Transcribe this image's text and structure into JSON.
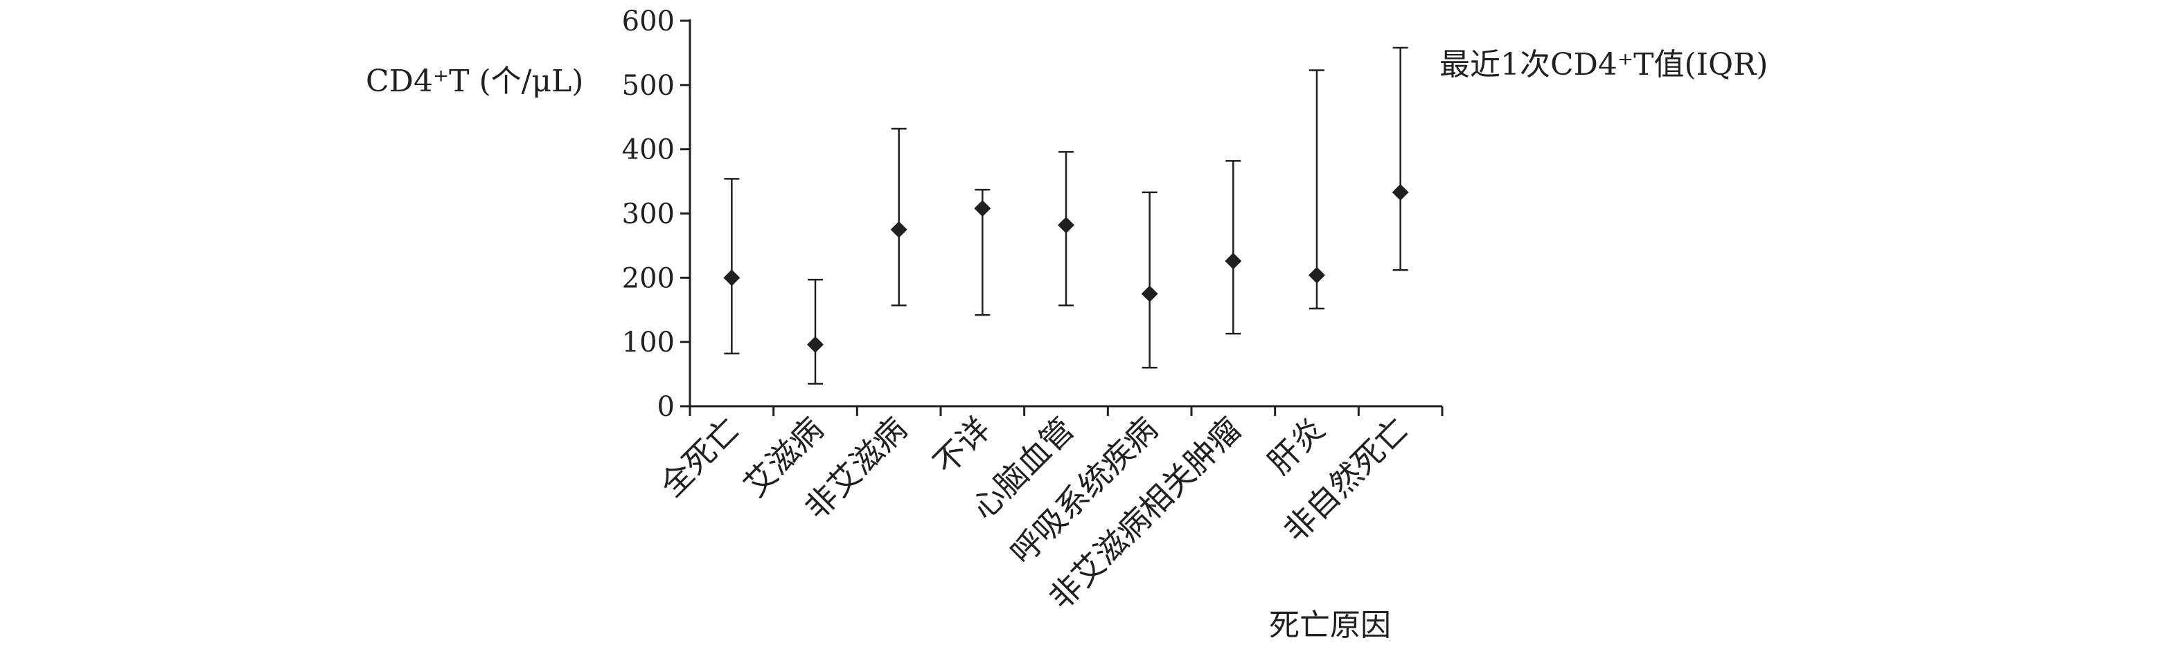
{
  "chart_data": {
    "type": "scatter",
    "title": "",
    "ylabel": "CD4⁺T (个/μL)",
    "xlabel": "死亡原因",
    "legend": {
      "label": "最近1次CD4⁺T值(IQR)",
      "position": "top-right"
    },
    "ylim": [
      0,
      600
    ],
    "yticks": [
      0,
      100,
      200,
      300,
      400,
      500,
      600
    ],
    "grid": false,
    "categories": [
      "全死亡",
      "艾滋病",
      "非艾滋病",
      "不详",
      "心脑血管",
      "呼吸系统疾病",
      "非艾滋病相关肿瘤",
      "肝炎",
      "非自然死亡"
    ],
    "series": [
      {
        "name": "最近1次CD4⁺T值(IQR)",
        "median": [
          200,
          96,
          275,
          308,
          282,
          175,
          226,
          204,
          333
        ],
        "q1": [
          82,
          35,
          157,
          142,
          157,
          60,
          113,
          152,
          212
        ],
        "q3": [
          354,
          197,
          432,
          337,
          396,
          333,
          382,
          523,
          558
        ]
      }
    ],
    "colors": {
      "ink": "#231f20"
    }
  }
}
